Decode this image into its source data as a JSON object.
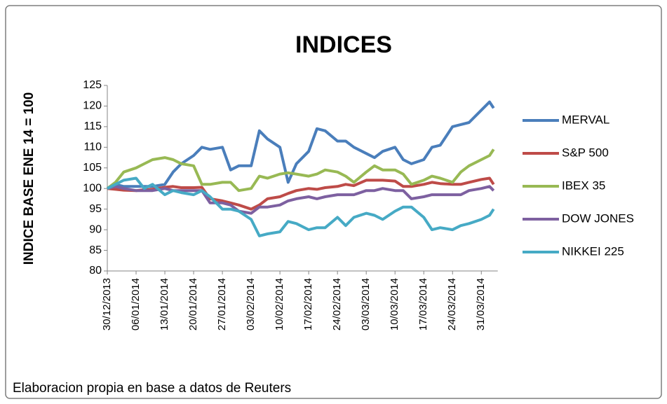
{
  "chart_data": {
    "type": "line",
    "title": "INDICES",
    "ylabel": "INDICE BASE ENE 14 = 100",
    "caption": "Elaboracion propia en base a datos de Reuters",
    "x": [
      "30/12/2013",
      "01/01/2014",
      "03/01/2014",
      "06/01/2014",
      "08/01/2014",
      "10/01/2014",
      "13/01/2014",
      "15/01/2014",
      "17/01/2014",
      "20/01/2014",
      "22/01/2014",
      "24/01/2014",
      "27/01/2014",
      "29/01/2014",
      "31/01/2014",
      "03/02/2014",
      "05/02/2014",
      "07/02/2014",
      "10/02/2014",
      "12/02/2014",
      "14/02/2014",
      "17/02/2014",
      "19/02/2014",
      "21/02/2014",
      "24/02/2014",
      "26/02/2014",
      "28/02/2014",
      "03/03/2014",
      "05/03/2014",
      "07/03/2014",
      "10/03/2014",
      "12/03/2014",
      "14/03/2014",
      "17/03/2014",
      "19/03/2014",
      "21/03/2014",
      "24/03/2014",
      "26/03/2014",
      "28/03/2014",
      "31/03/2014",
      "02/04/2014",
      "03/04/2014"
    ],
    "xlim": [
      "30/12/2013",
      "04/04/2014"
    ],
    "xticks": [
      "30/12/2013",
      "06/01/2014",
      "13/01/2014",
      "20/01/2014",
      "27/01/2014",
      "03/02/2014",
      "10/02/2014",
      "17/02/2014",
      "24/02/2014",
      "03/03/2014",
      "10/03/2014",
      "17/03/2014",
      "24/03/2014",
      "31/03/2014"
    ],
    "ylim": [
      80,
      125
    ],
    "yticks": [
      80,
      85,
      90,
      95,
      100,
      105,
      110,
      115,
      120,
      125
    ],
    "legend": "right",
    "series": [
      {
        "name": "MERVAL",
        "color": "#4a7ebb",
        "values": [
          100,
          101,
          100.5,
          100.5,
          100.5,
          100.5,
          101,
          104,
          106,
          108,
          110,
          109.5,
          110,
          104.5,
          105.5,
          105.5,
          114,
          112,
          110,
          101.5,
          106,
          109,
          114.5,
          114,
          111.5,
          111.5,
          110,
          108.5,
          107.5,
          109,
          110,
          107,
          106,
          107,
          110,
          110.5,
          115,
          115.5,
          116,
          119,
          121,
          119.5
        ]
      },
      {
        "name": "S&P 500",
        "color": "#be4b48",
        "values": [
          100,
          99.8,
          99.6,
          99.5,
          99.7,
          99.8,
          100.3,
          100.5,
          100.2,
          100.2,
          100.3,
          97.5,
          97,
          96.5,
          96,
          95,
          96,
          97.5,
          98,
          98.8,
          99.5,
          100,
          99.8,
          100.2,
          100.5,
          101,
          100.7,
          102,
          102,
          102,
          101.8,
          100.5,
          100.5,
          101,
          101.5,
          101.2,
          101,
          101,
          101.5,
          102.2,
          102.5,
          101
        ]
      },
      {
        "name": "IBEX 35",
        "color": "#98b954",
        "values": [
          100,
          101.5,
          104,
          105,
          106,
          107,
          107.5,
          107,
          106,
          105.5,
          101,
          101,
          101.5,
          101.5,
          99.5,
          100,
          103,
          102.5,
          103.5,
          103.8,
          103.5,
          103,
          103.5,
          104.5,
          104,
          103,
          101.5,
          104,
          105.5,
          104.5,
          104.5,
          103.5,
          101,
          102,
          103,
          102.5,
          101.5,
          104,
          105.5,
          107,
          108,
          109.5
        ]
      },
      {
        "name": "DOW JONES",
        "color": "#7d60a0",
        "values": [
          100,
          100.5,
          100,
          99.5,
          99.5,
          99.5,
          100,
          99.5,
          99.5,
          99.5,
          99.5,
          96.5,
          96.5,
          96,
          94.5,
          94,
          95.5,
          95.5,
          96,
          97,
          97.5,
          98,
          97.5,
          98,
          98.5,
          98.5,
          98.5,
          99.5,
          99.5,
          100,
          99.5,
          99.5,
          97.5,
          98,
          98.5,
          98.5,
          98.5,
          98.5,
          99.5,
          100,
          100.5,
          99.5
        ]
      },
      {
        "name": "NIKKEI 225",
        "color": "#46aac5",
        "values": [
          100,
          101,
          102,
          102.5,
          100,
          101,
          98.5,
          99.5,
          99,
          98.5,
          99.5,
          98,
          95,
          95,
          94.5,
          92.5,
          88.5,
          89,
          89.5,
          92,
          91.5,
          90,
          90.5,
          90.5,
          93,
          91,
          93,
          94,
          93.5,
          92.5,
          94.5,
          95.5,
          95.5,
          93,
          90,
          90.5,
          90,
          91,
          91.5,
          92.5,
          93.5,
          95
        ]
      }
    ]
  }
}
